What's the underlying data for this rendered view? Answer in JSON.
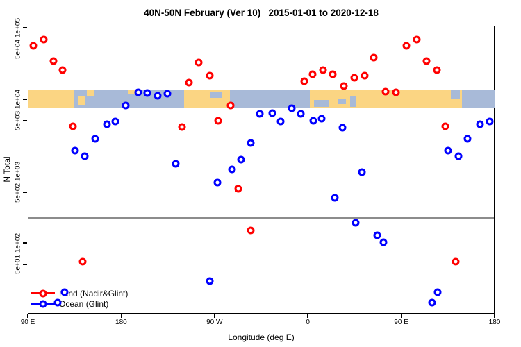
{
  "chart_data": {
    "type": "scatter",
    "title": "40N-50N February (Ver 10)   2015-01-01 to 2020-12-18",
    "xlabel": "Longitude (deg E)",
    "ylabel": "N Total",
    "x_axis": {
      "note": "longitude axis runs 90E eastward wrapping to 180 (90..540 deg E plot coords)",
      "range_deg": [
        90,
        540
      ],
      "ticks": [
        {
          "lon": 90,
          "label": "90 E"
        },
        {
          "lon": 180,
          "label": "180"
        },
        {
          "lon": 270,
          "label": "90 W"
        },
        {
          "lon": 360,
          "label": "0"
        },
        {
          "lon": 450,
          "label": "90 E"
        },
        {
          "lon": 540,
          "label": "180"
        }
      ]
    },
    "y_axis": {
      "scale": "log",
      "ticks": [
        {
          "value": 100000,
          "label": "1e+05"
        },
        {
          "value": 50000,
          "label": "5e+04"
        },
        {
          "value": 10000,
          "label": "1e+04"
        },
        {
          "value": 5000,
          "label": "5e+03"
        },
        {
          "value": 1000,
          "label": "1e+03"
        },
        {
          "value": 500,
          "label": "5e+02"
        },
        {
          "value": 100,
          "label": "1e+02"
        },
        {
          "value": 50,
          "label": "5e+01"
        }
      ]
    },
    "threshold_line": {
      "value": 230,
      "color": "#8c8c8c"
    },
    "map_band": {
      "value_top": 13700,
      "value_bottom": 7700,
      "land_color": "#FBD583",
      "ocean_color": "#A8BAD8",
      "ocean_segments_lon": [
        [
          134,
          240
        ],
        [
          284,
          361
        ],
        [
          508,
          540
        ]
      ],
      "patches": [
        {
          "lon0": 138,
          "lon1": 144,
          "f0": 0.35,
          "f1": 0.85,
          "kind": "land"
        },
        {
          "lon0": 146,
          "lon1": 153,
          "f0": 0.0,
          "f1": 0.35,
          "kind": "land"
        },
        {
          "lon0": 186,
          "lon1": 199,
          "f0": 0.0,
          "f1": 0.22,
          "kind": "land"
        },
        {
          "lon0": 265,
          "lon1": 276,
          "f0": 0.1,
          "f1": 0.42,
          "kind": "ocean"
        },
        {
          "lon0": 365,
          "lon1": 380,
          "f0": 0.55,
          "f1": 0.92,
          "kind": "ocean"
        },
        {
          "lon0": 388,
          "lon1": 396,
          "f0": 0.45,
          "f1": 0.78,
          "kind": "ocean"
        },
        {
          "lon0": 400,
          "lon1": 406,
          "f0": 0.35,
          "f1": 0.95,
          "kind": "ocean"
        },
        {
          "lon0": 497,
          "lon1": 506,
          "f0": 0.0,
          "f1": 0.5,
          "kind": "ocean"
        }
      ]
    },
    "legend": [
      {
        "label": "Land (Nadir&Glint)",
        "color": "#FF0000"
      },
      {
        "label": "Ocean (Glint)",
        "color": "#0000FF"
      }
    ],
    "series": [
      {
        "name": "Land (Nadir&Glint)",
        "color": "#FF0000",
        "points": [
          [
            95,
            57000
          ],
          [
            105,
            70000
          ],
          [
            114,
            35000
          ],
          [
            123,
            26000
          ],
          [
            133,
            4300
          ],
          [
            142,
            56
          ],
          [
            238,
            4200
          ],
          [
            245,
            17600
          ],
          [
            254,
            33000
          ],
          [
            265,
            22000
          ],
          [
            273,
            5100
          ],
          [
            285,
            8400
          ],
          [
            292,
            580
          ],
          [
            304,
            152
          ],
          [
            356,
            18400
          ],
          [
            364,
            23000
          ],
          [
            374,
            26000
          ],
          [
            383,
            23000
          ],
          [
            394,
            15500
          ],
          [
            404,
            20500
          ],
          [
            414,
            22000
          ],
          [
            423,
            39000
          ],
          [
            434,
            13000
          ],
          [
            444,
            12700
          ],
          [
            454,
            57000
          ],
          [
            464,
            70000
          ],
          [
            474,
            35000
          ],
          [
            484,
            26000
          ],
          [
            492,
            4300
          ],
          [
            502,
            56
          ]
        ]
      },
      {
        "name": "Ocean (Glint)",
        "color": "#0000FF",
        "points": [
          [
            118,
            15
          ],
          [
            125,
            21
          ],
          [
            135,
            1970
          ],
          [
            144,
            1650
          ],
          [
            154,
            2880
          ],
          [
            166,
            4590
          ],
          [
            174,
            5000
          ],
          [
            184,
            8400
          ],
          [
            196,
            12800
          ],
          [
            204.5,
            12500
          ],
          [
            214.5,
            11400
          ],
          [
            224,
            12200
          ],
          [
            232,
            1290
          ],
          [
            265,
            30
          ],
          [
            272,
            710
          ],
          [
            286,
            1080
          ],
          [
            295,
            1480
          ],
          [
            304,
            2520
          ],
          [
            313,
            6400
          ],
          [
            325,
            6500
          ],
          [
            333,
            5000
          ],
          [
            344,
            7700
          ],
          [
            352.5,
            6400
          ],
          [
            364.5,
            5100
          ],
          [
            372.5,
            5500
          ],
          [
            385,
            435
          ],
          [
            392.5,
            4100
          ],
          [
            405.5,
            195
          ],
          [
            411.5,
            990
          ],
          [
            426,
            130
          ],
          [
            432,
            105
          ],
          [
            479,
            15
          ],
          [
            484.5,
            21
          ],
          [
            494.5,
            1970
          ],
          [
            504.5,
            1650
          ],
          [
            513,
            2880
          ],
          [
            525,
            4590
          ],
          [
            534.5,
            5000
          ]
        ]
      }
    ]
  }
}
